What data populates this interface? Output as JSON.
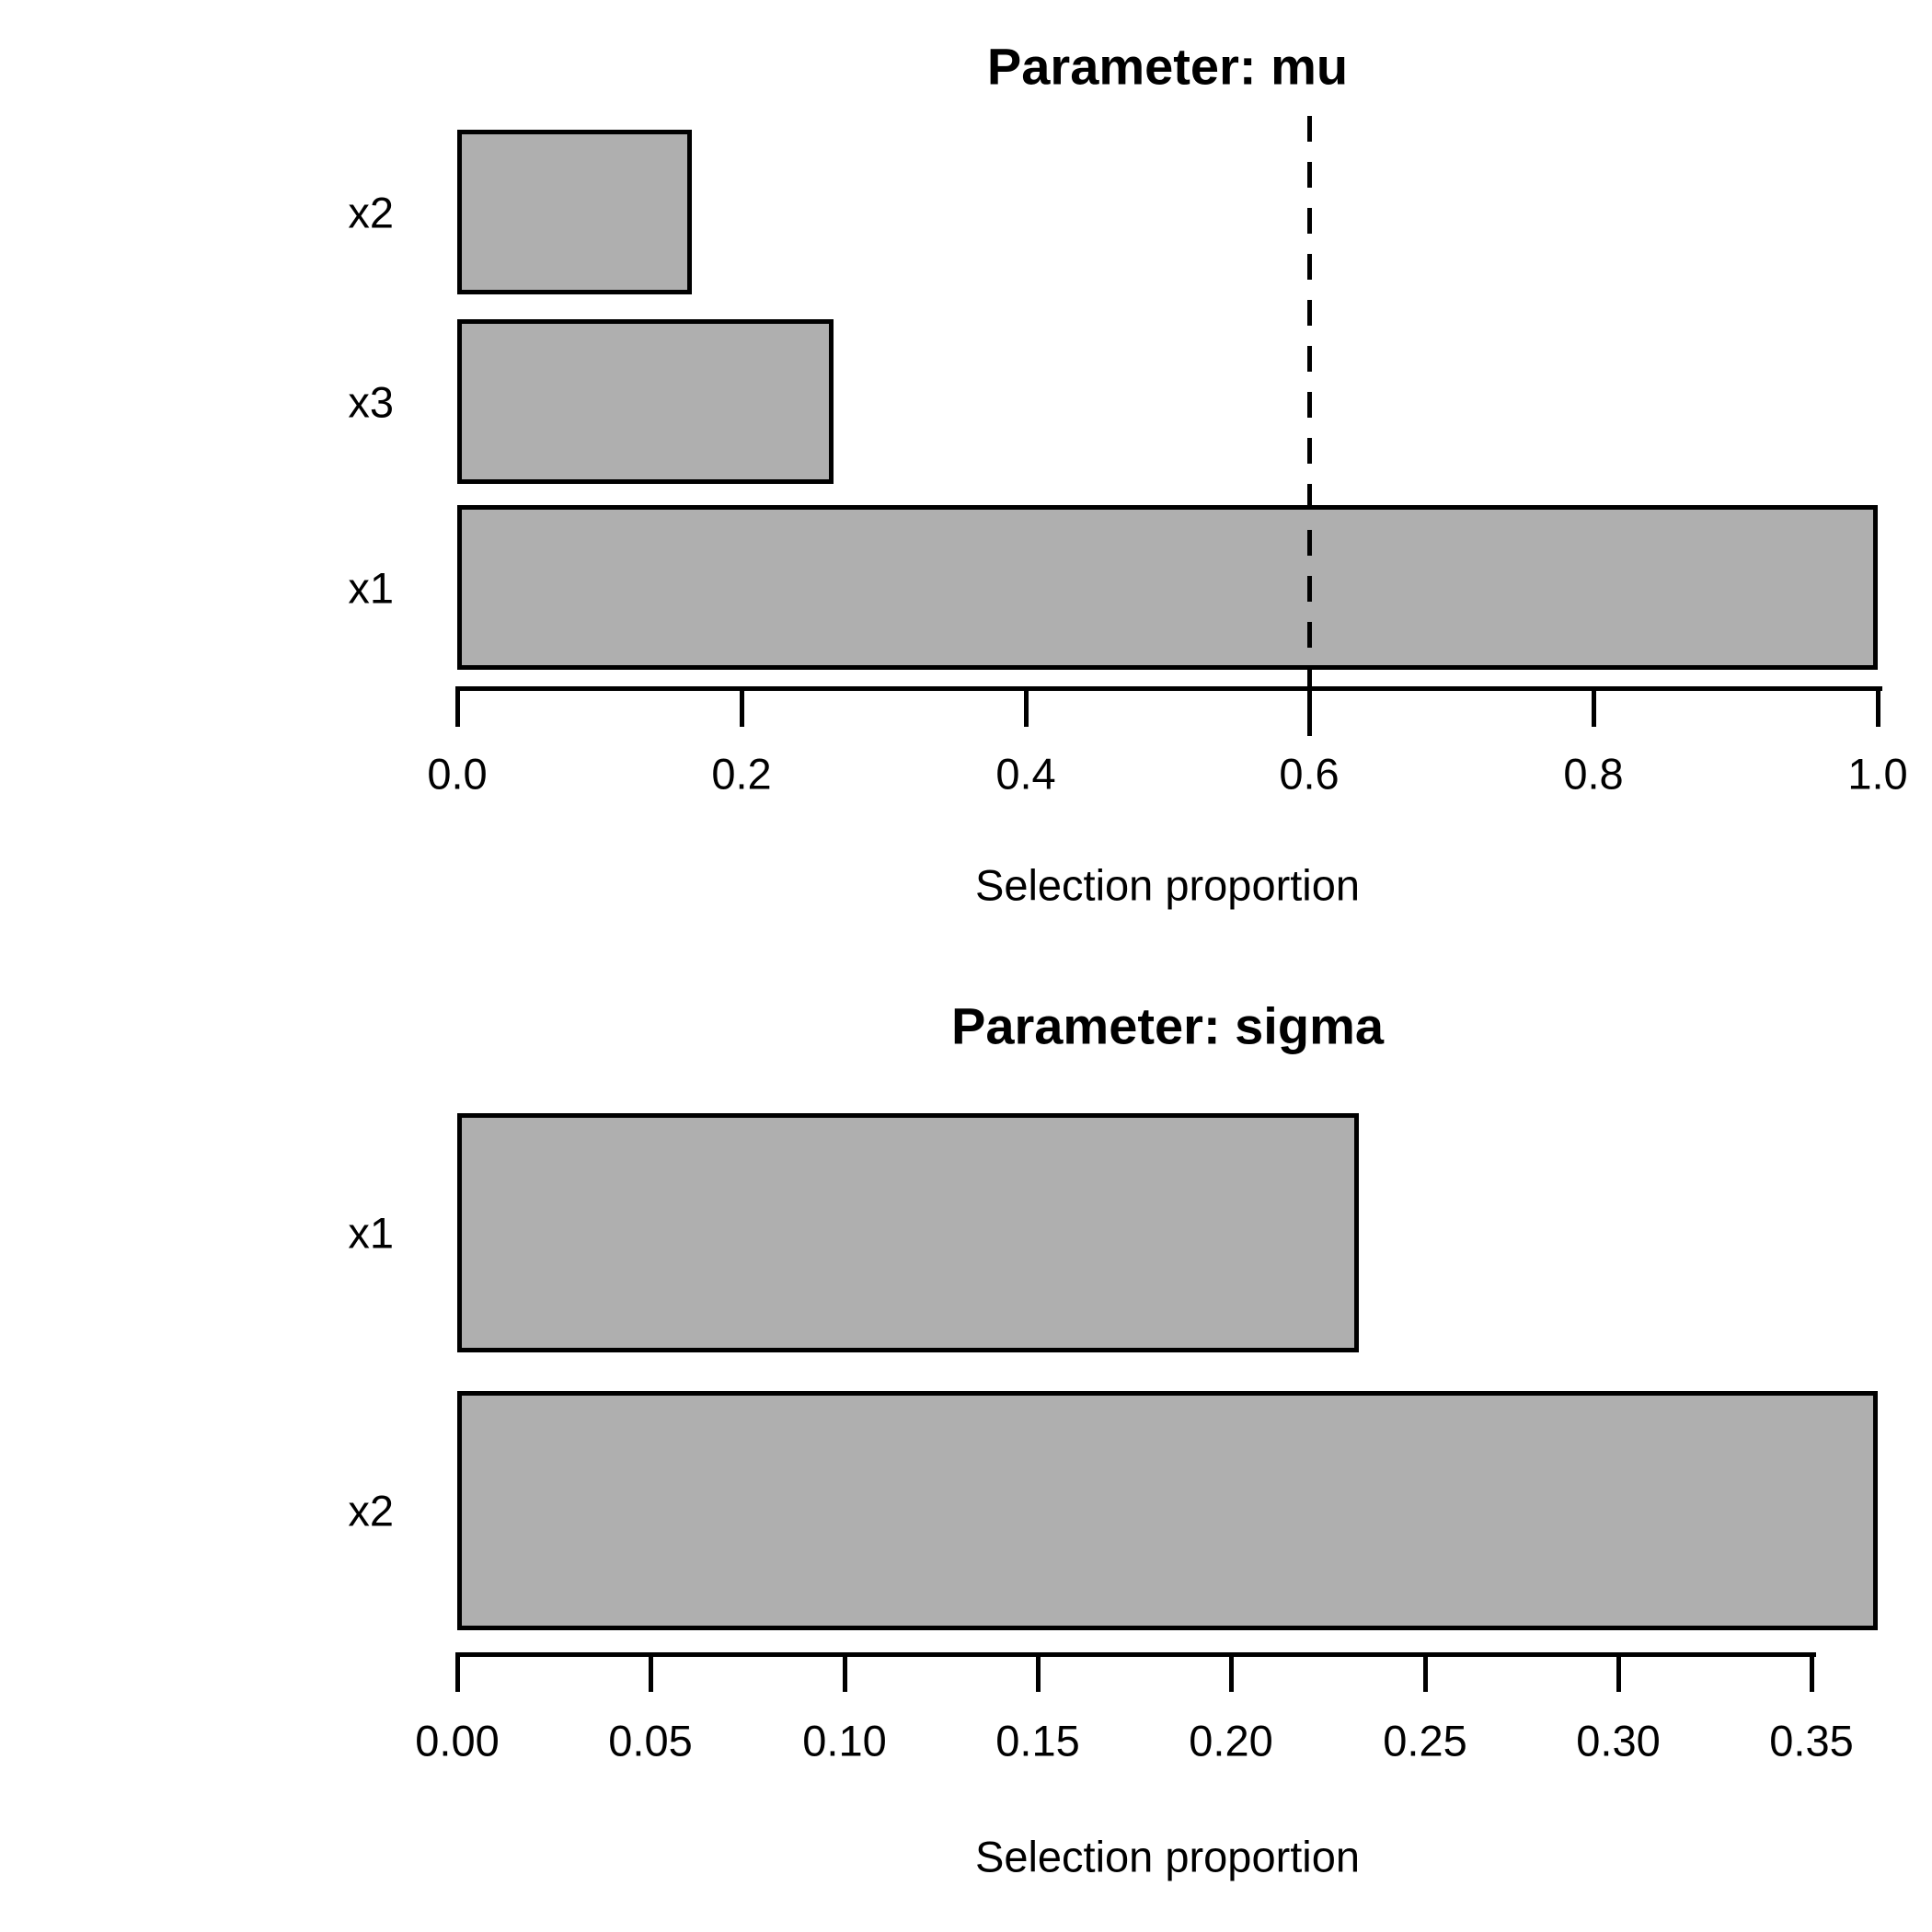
{
  "figure": {
    "background_color": "#FFFFFF",
    "text_color": "#000000"
  },
  "chart_data": [
    {
      "type": "bar",
      "orientation": "horizontal",
      "title": "Parameter: mu",
      "xlabel": "Selection proportion",
      "categories": [
        "x2",
        "x3",
        "x1"
      ],
      "values": [
        0.165,
        0.265,
        1.0
      ],
      "xlim": [
        0,
        1.0
      ],
      "tick_values": [
        0.0,
        0.2,
        0.4,
        0.6,
        0.8,
        1.0
      ],
      "tick_labels": [
        "0.0",
        "0.2",
        "0.4",
        "0.6",
        "0.8",
        "1.0"
      ],
      "axis_line_end_value": 1.0,
      "threshold_line": {
        "value": 0.6,
        "style": "dashed",
        "color": "#000000"
      },
      "grid": "off",
      "legend": "none",
      "bar_fill": "#AFAFAF",
      "bar_border": "#000000"
    },
    {
      "type": "bar",
      "orientation": "horizontal",
      "title": "Parameter: sigma",
      "xlabel": "Selection proportion",
      "categories": [
        "x1",
        "x2"
      ],
      "values": [
        0.233,
        0.367
      ],
      "xlim": [
        0,
        0.367
      ],
      "tick_values": [
        0.0,
        0.05,
        0.1,
        0.15,
        0.2,
        0.25,
        0.3,
        0.35
      ],
      "tick_labels": [
        "0.00",
        "0.05",
        "0.10",
        "0.15",
        "0.20",
        "0.25",
        "0.30",
        "0.35"
      ],
      "axis_line_end_value": 0.35,
      "threshold_line": null,
      "grid": "off",
      "legend": "none",
      "bar_fill": "#AFAFAF",
      "bar_border": "#000000"
    }
  ]
}
